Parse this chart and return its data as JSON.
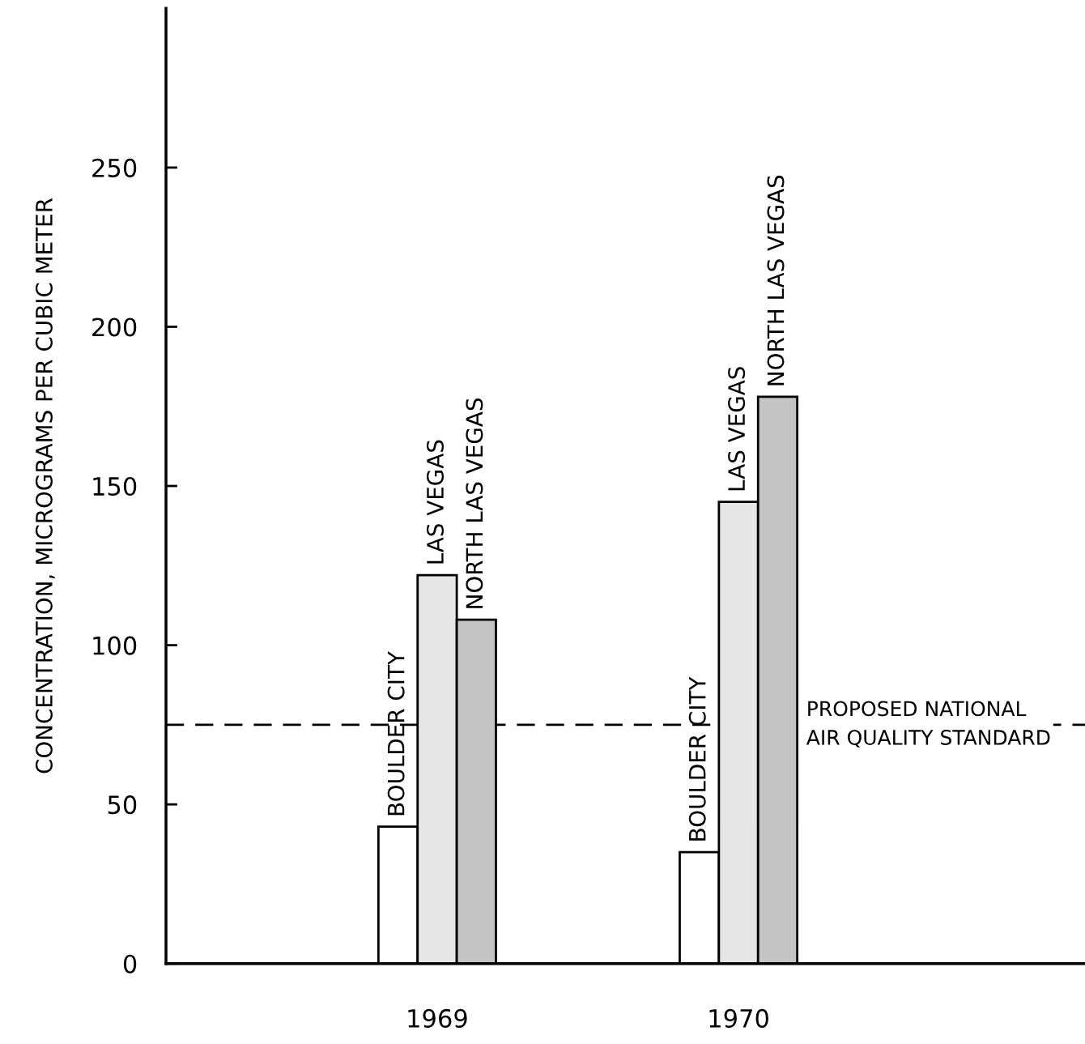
{
  "chart_data": {
    "type": "bar",
    "ylabel": "CONCENTRATION, MICROGRAMS PER CUBIC METER",
    "categories": [
      "1969",
      "1970"
    ],
    "series": [
      {
        "name": "BOULDER CITY",
        "color": "#ffffff",
        "values": [
          43,
          35
        ]
      },
      {
        "name": "LAS VEGAS",
        "color": "#e6e6e6",
        "values": [
          122,
          145
        ]
      },
      {
        "name": "NORTH LAS VEGAS",
        "color": "#c4c4c4",
        "values": [
          108,
          178
        ]
      }
    ],
    "ylim": [
      0,
      300
    ],
    "yticks": [
      0,
      50,
      100,
      150,
      200,
      250
    ],
    "grid": false,
    "legend": false,
    "ref_lines": [
      {
        "axis": "y",
        "value": 75,
        "label": "PROPOSED NATIONAL\nAIR QUALITY STANDARD",
        "color": "#000000",
        "line_style": "dashed"
      }
    ]
  }
}
